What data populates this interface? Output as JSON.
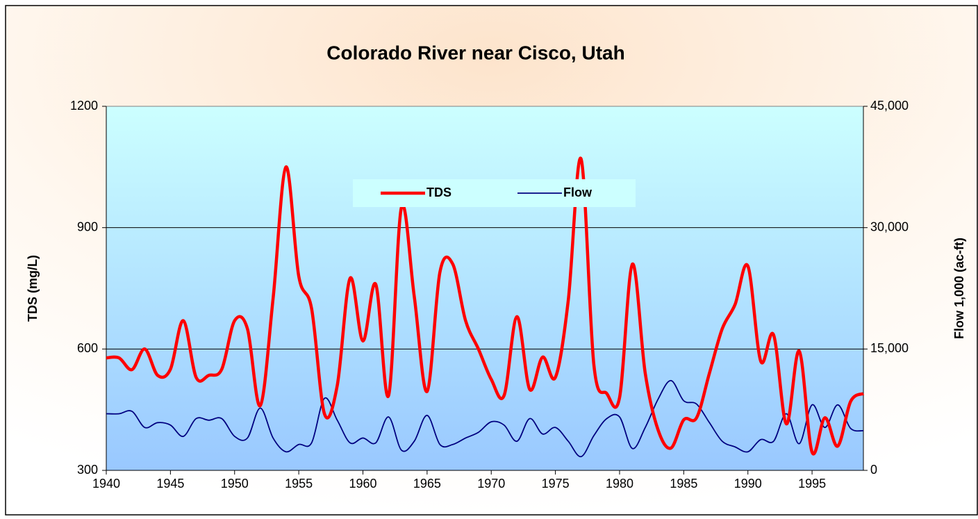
{
  "chart_data": {
    "type": "line",
    "title": "Colorado River near Cisco, Utah",
    "y_label": "TDS (mg/L)",
    "y2_label": "Flow 1,000 (ac-ft)",
    "x": [
      1940,
      1941,
      1942,
      1943,
      1944,
      1945,
      1946,
      1947,
      1948,
      1949,
      1950,
      1951,
      1952,
      1953,
      1954,
      1955,
      1956,
      1957,
      1958,
      1959,
      1960,
      1961,
      1962,
      1963,
      1964,
      1965,
      1966,
      1967,
      1968,
      1969,
      1970,
      1971,
      1972,
      1973,
      1974,
      1975,
      1976,
      1977,
      1978,
      1979,
      1980,
      1981,
      1982,
      1983,
      1984,
      1985,
      1986,
      1987,
      1988,
      1989,
      1990,
      1991,
      1992,
      1993,
      1994,
      1995,
      1996,
      1997,
      1998,
      1999
    ],
    "series": [
      {
        "name": "TDS",
        "color": "#ff0000",
        "values": [
          578,
          578,
          549,
          600,
          535,
          550,
          670,
          530,
          535,
          550,
          670,
          650,
          460,
          725,
          1050,
          780,
          700,
          440,
          510,
          775,
          620,
          760,
          485,
          950,
          730,
          495,
          790,
          810,
          670,
          600,
          525,
          485,
          680,
          500,
          580,
          530,
          720,
          1070,
          560,
          490,
          480,
          810,
          540,
          400,
          355,
          425,
          430,
          540,
          650,
          710,
          805,
          570,
          635,
          415,
          595,
          345,
          430,
          360,
          470,
          490
        ]
      },
      {
        "name": "Flow",
        "color": "#000080",
        "axis": "y2",
        "values": [
          7000,
          7000,
          7300,
          5300,
          5900,
          5600,
          4200,
          6400,
          6200,
          6400,
          4200,
          4000,
          7700,
          4000,
          2300,
          3200,
          3400,
          8900,
          6200,
          3400,
          4000,
          3400,
          6600,
          2500,
          3600,
          6800,
          3200,
          3200,
          4000,
          4700,
          6000,
          5600,
          3600,
          6400,
          4500,
          5300,
          3600,
          1700,
          4300,
          6400,
          6600,
          2700,
          5300,
          8800,
          11100,
          8600,
          8200,
          5900,
          3600,
          2900,
          2300,
          3800,
          3600,
          7000,
          3300,
          8100,
          5300,
          8100,
          5200,
          4900
        ]
      }
    ],
    "xlim": [
      1940,
      1999
    ],
    "xticks": [
      1940,
      1945,
      1950,
      1955,
      1960,
      1965,
      1970,
      1975,
      1980,
      1985,
      1990,
      1995
    ],
    "ylim": [
      300,
      1200
    ],
    "yticks": [
      300,
      600,
      900,
      1200
    ],
    "y2lim": [
      0,
      45000
    ],
    "y2ticks": [
      0,
      {
        "value": 15000,
        "label": "15,000"
      },
      {
        "value": 30000,
        "label": "30,000"
      },
      {
        "value": 45000,
        "label": "45,000"
      }
    ],
    "grid": true,
    "legend": "upper center"
  }
}
